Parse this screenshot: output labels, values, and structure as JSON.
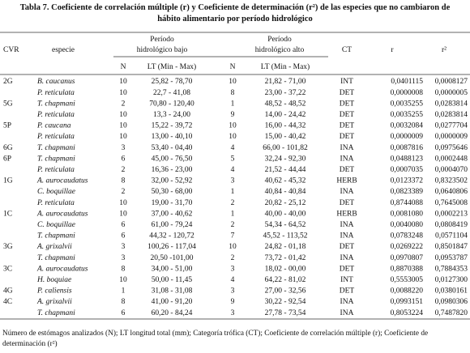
{
  "title": "Tabla 7. Coeficiente de correlación múltiple (r) y Coeficiente de determinación (r²) de las especies que no cambiaron de hábito alimentario por período hidrológico",
  "table": {
    "headers": {
      "cvr": "CVR",
      "especie": "especie",
      "bajo": [
        "Período",
        "hidrológico bajo"
      ],
      "alto": [
        "Período",
        "hidrológico alto"
      ],
      "ct": "CT",
      "r": "r",
      "r2": "r²",
      "sub": [
        "N",
        "LT (Min - Max)",
        "N",
        "LT (Min - Max)"
      ]
    },
    "rows": [
      [
        "2G",
        "B. caucanus",
        10,
        "25,82 - 78,70",
        10,
        "21,82 - 71,00",
        "INT",
        "0,0401115",
        "0,0008127"
      ],
      [
        null,
        "P. reticulata",
        10,
        "22,7 - 41,08",
        8,
        "23,00 - 37,22",
        "DET",
        "0,0000008",
        "0,0000005"
      ],
      [
        "5G",
        "T. chapmani",
        2,
        "70,80 - 120,40",
        1,
        "48,52 - 48,52",
        "DET",
        "0,0035255",
        "0,0283814"
      ],
      [
        null,
        "P. reticulata",
        10,
        "13,3 - 24,00",
        9,
        "14,00 - 24,42",
        "DET",
        "0,0035255",
        "0,0283814"
      ],
      [
        "5P",
        "P. caucana",
        10,
        "15,22 - 39,72",
        10,
        "16,00 - 44,32",
        "DET",
        "0,0032084",
        "0,0277704"
      ],
      [
        null,
        "P. reticulata",
        10,
        "13,00 - 40,10",
        10,
        "15,00 - 40,42",
        "DET",
        "0,0000009",
        "0,0000009"
      ],
      [
        "6G",
        "T. chapmani",
        3,
        "53,40 - 04,40",
        4,
        "66,00 - 101,82",
        "INA",
        "0,0087816",
        "0,0975646"
      ],
      [
        "6P",
        "T. chapmani",
        6,
        "45,00 - 76,50",
        5,
        "32,24 - 92,30",
        "INA",
        "0,0488123",
        "0,0002448"
      ],
      [
        null,
        "P. reticulata",
        2,
        "16,36 - 23,00",
        4,
        "21,52 - 44,44",
        "DET",
        "0,0007035",
        "0,0004070"
      ],
      [
        "1G",
        "A. aurocaudatus",
        8,
        "32,00 - 52,92",
        3,
        "40,62 - 45,32",
        "HERB",
        "0,0123372",
        "0,8323502"
      ],
      [
        null,
        "C. boquillae",
        2,
        "50,30 - 68,00",
        1,
        "40,84 - 40,84",
        "INA",
        "0,0823389",
        "0,0640806"
      ],
      [
        null,
        "P. reticulata",
        10,
        "19,00 - 31,70",
        2,
        "20,82 - 25,12",
        "DET",
        "0,8744088",
        "0,7645008"
      ],
      [
        "1C",
        "A. aurocaudatus",
        10,
        "37,00 - 40,62",
        1,
        "40,00 - 40,00",
        "HERB",
        "0,0081080",
        "0,0002213"
      ],
      [
        null,
        "C. boquillae",
        6,
        "61,00 - 79,24",
        2,
        "54,34 - 64,52",
        "INA",
        "0,0040080",
        "0,0808419"
      ],
      [
        null,
        "T. chapmani",
        6,
        "44,32 - 120,72",
        7,
        "45,52 - 113,52",
        "INA",
        "0,0783248",
        "0,0571104"
      ],
      [
        "3G",
        "A. grixalvii",
        3,
        "100,26 - 117,04",
        10,
        "24,82 - 01,18",
        "DET",
        "0,0269222",
        "0,8501847"
      ],
      [
        null,
        "T. chapmani",
        3,
        "20,50 -101,00",
        2,
        "73,72 - 01,42",
        "INA",
        "0,0970807",
        "0,0953787"
      ],
      [
        "3C",
        "A. aurocaudatus",
        8,
        "34,00 - 51,00",
        3,
        "18,02 - 00,00",
        "DET",
        "0,8870388",
        "0,7884353"
      ],
      [
        null,
        "H. boquiae",
        10,
        "50,00 - 11,45",
        4,
        "64,22 - 81,02",
        "INT",
        "0,5553005",
        "0,0127300"
      ],
      [
        "4G",
        "P. caliensis",
        1,
        "31,08 - 31,08",
        3,
        "27,00 - 32,56",
        "DET",
        "0,0088220",
        "0,0380161"
      ],
      [
        "4C",
        "A. grixalvii",
        8,
        "41,00 - 91,20",
        9,
        "30,22 - 92,54",
        "INA",
        "0,0993151",
        "0,0980306"
      ],
      [
        null,
        "T. chapmani",
        6,
        "60,20 - 84,24",
        3,
        "27,78 - 73,54",
        "INA",
        "0,8053224",
        "0,7487820"
      ]
    ]
  },
  "footnote": "Número de estómagos analizados (N); LT longitud total (mm); Categoría trófica (CT); Coeficiente de correlación múltiple (r); Coeficiente de determinación (r²)"
}
